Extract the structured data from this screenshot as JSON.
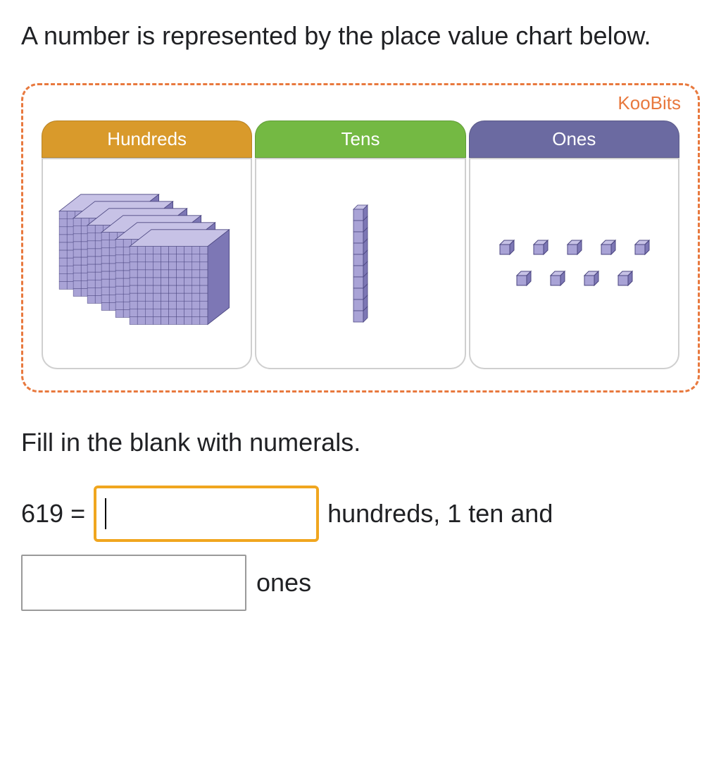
{
  "question": "A number is represented by the place value chart below.",
  "watermark": "KooBits",
  "chart": {
    "columns": [
      {
        "label": "Hundreds",
        "header_color": "#d99a2b",
        "count": 6,
        "kind": "flat"
      },
      {
        "label": "Tens",
        "header_color": "#74b943",
        "count": 1,
        "kind": "rod"
      },
      {
        "label": "Ones",
        "header_color": "#6b6aa1",
        "count": 9,
        "kind": "unit",
        "rows": [
          5,
          4
        ]
      }
    ],
    "block_face": "#a9a3d6",
    "block_top": "#c7c2e6",
    "block_side": "#7d77b5",
    "block_edge": "#4b4680",
    "body_border": "#cfcfcf",
    "dashed_border": "#e8793e"
  },
  "instruction": "Fill in the blank with numerals.",
  "answer": {
    "lhs": "619 =",
    "blank1_value": "",
    "blank1_active": true,
    "after1": "hundreds, 1 ten and",
    "blank2_value": "",
    "after2": "ones",
    "active_border": "#f0a61f",
    "inactive_border": "#9a9a9a"
  }
}
